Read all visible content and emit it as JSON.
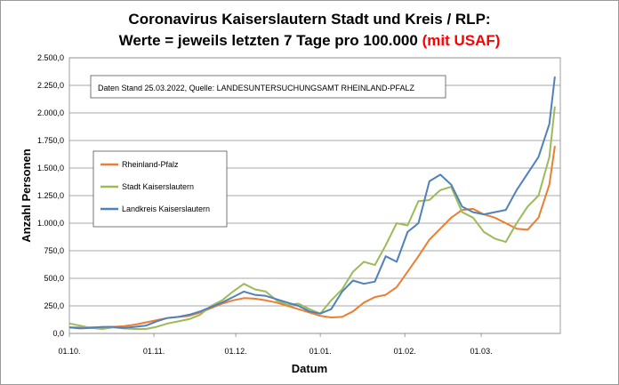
{
  "chart_data": {
    "type": "line",
    "title_line1": "Coronavirus Kaiserslautern Stadt und Kreis / RLP:",
    "title_line2_main": "Werte = jeweils letzten 7 Tage pro 100.000 ",
    "title_line2_highlight": "(mit USAF)",
    "title_highlight_color": "#ff0000",
    "note": "Daten Stand 25.03.2022, Quelle: LANDESUNTERSUCHUNGSAMT RHEINLAND-PFALZ",
    "xlabel": "Datum",
    "ylabel": "Anzahl Personen",
    "ylim": [
      0,
      2500
    ],
    "ytick_labels": [
      "0,0",
      "250,0",
      "500,0",
      "750,0",
      "1.000,0",
      "1.250,0",
      "1.500,0",
      "1.750,0",
      "2.000,0",
      "2.250,0",
      "2.500,0"
    ],
    "xtick_labels": [
      "01.10.",
      "01.11.",
      "01.12.",
      "01.01.",
      "01.02.",
      "01.03."
    ],
    "grid": "horizontal",
    "legend_position": "left",
    "series": [
      {
        "name": "Rheinland-Pfalz",
        "color": "#ed7d31",
        "x": [
          0,
          4,
          8,
          12,
          16,
          20,
          24,
          28,
          32,
          36,
          40,
          44,
          48,
          52,
          56,
          60,
          64,
          68,
          72,
          76,
          80,
          84,
          88,
          92,
          96,
          100,
          104,
          108,
          112,
          116,
          120,
          124,
          128,
          132,
          136,
          140,
          144,
          148,
          152,
          156,
          160,
          164,
          168,
          172,
          176,
          178
        ],
        "values": [
          55,
          55,
          56,
          56,
          60,
          65,
          80,
          100,
          120,
          140,
          150,
          160,
          190,
          230,
          270,
          300,
          320,
          315,
          300,
          280,
          250,
          220,
          190,
          160,
          145,
          150,
          200,
          280,
          330,
          350,
          420,
          560,
          700,
          850,
          950,
          1050,
          1120,
          1130,
          1080,
          1050,
          1000,
          950,
          940,
          1050,
          1350,
          1700
        ]
      },
      {
        "name": "Stadt Kaiserslautern",
        "color": "#9bbb59",
        "x": [
          0,
          4,
          8,
          12,
          16,
          20,
          24,
          28,
          32,
          36,
          40,
          44,
          48,
          52,
          56,
          60,
          64,
          68,
          72,
          76,
          80,
          84,
          88,
          92,
          96,
          100,
          104,
          108,
          112,
          116,
          120,
          124,
          128,
          132,
          136,
          140,
          144,
          148,
          152,
          156,
          160,
          164,
          168,
          172,
          176,
          178
        ],
        "values": [
          90,
          70,
          50,
          40,
          55,
          45,
          40,
          40,
          60,
          90,
          110,
          130,
          170,
          250,
          300,
          380,
          450,
          400,
          380,
          300,
          260,
          270,
          220,
          180,
          300,
          400,
          560,
          650,
          620,
          800,
          1000,
          980,
          1200,
          1210,
          1300,
          1330,
          1100,
          1050,
          920,
          860,
          830,
          1000,
          1150,
          1250,
          1600,
          2060
        ]
      },
      {
        "name": "Landkreis Kaiserslautern",
        "color": "#4f81bd",
        "x": [
          0,
          4,
          8,
          12,
          16,
          20,
          24,
          28,
          32,
          36,
          40,
          44,
          48,
          52,
          56,
          60,
          64,
          68,
          72,
          76,
          80,
          84,
          88,
          92,
          96,
          100,
          104,
          108,
          112,
          116,
          120,
          124,
          128,
          132,
          136,
          140,
          144,
          148,
          152,
          156,
          160,
          164,
          168,
          172,
          176,
          178
        ],
        "values": [
          55,
          45,
          50,
          60,
          60,
          50,
          60,
          70,
          110,
          140,
          150,
          170,
          200,
          240,
          280,
          330,
          380,
          350,
          340,
          310,
          280,
          250,
          200,
          180,
          220,
          380,
          480,
          450,
          470,
          700,
          650,
          920,
          1000,
          1380,
          1440,
          1350,
          1150,
          1100,
          1080,
          1100,
          1120,
          1300,
          1450,
          1600,
          1900,
          2330
        ]
      }
    ]
  }
}
